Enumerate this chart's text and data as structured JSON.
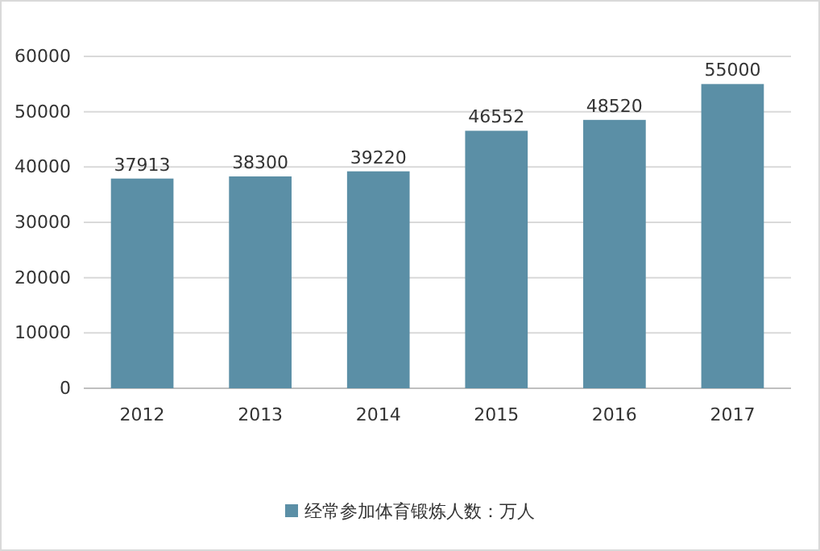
{
  "chart_data": {
    "type": "bar",
    "categories": [
      "2012",
      "2013",
      "2014",
      "2015",
      "2016",
      "2017"
    ],
    "series": [
      {
        "name": "经常参加体育锻炼人数：万人",
        "color": "#5b8fa6",
        "values": [
          37913,
          38300,
          39220,
          46552,
          48520,
          55000
        ]
      }
    ],
    "ylim": [
      0,
      60000
    ],
    "yticks": [
      0,
      10000,
      20000,
      30000,
      40000,
      50000,
      60000
    ],
    "grid": "y",
    "legend": "bottom",
    "data_labels": true
  }
}
